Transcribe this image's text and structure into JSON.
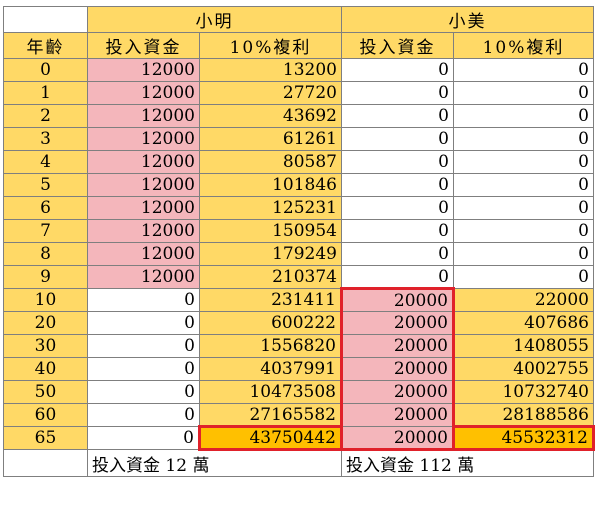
{
  "header": {
    "group_a": "小明",
    "group_b": "小美",
    "col_age": "年齡",
    "col_invest_a": "投入資金",
    "col_rate_a": "10%複利",
    "col_invest_b": "投入資金",
    "col_rate_b": "10%複利"
  },
  "rows": [
    {
      "age": "0",
      "a_invest": "12000",
      "a_value": "13200",
      "b_invest": "0",
      "b_value": "0"
    },
    {
      "age": "1",
      "a_invest": "12000",
      "a_value": "27720",
      "b_invest": "0",
      "b_value": "0"
    },
    {
      "age": "2",
      "a_invest": "12000",
      "a_value": "43692",
      "b_invest": "0",
      "b_value": "0"
    },
    {
      "age": "3",
      "a_invest": "12000",
      "a_value": "61261",
      "b_invest": "0",
      "b_value": "0"
    },
    {
      "age": "4",
      "a_invest": "12000",
      "a_value": "80587",
      "b_invest": "0",
      "b_value": "0"
    },
    {
      "age": "5",
      "a_invest": "12000",
      "a_value": "101846",
      "b_invest": "0",
      "b_value": "0"
    },
    {
      "age": "6",
      "a_invest": "12000",
      "a_value": "125231",
      "b_invest": "0",
      "b_value": "0"
    },
    {
      "age": "7",
      "a_invest": "12000",
      "a_value": "150954",
      "b_invest": "0",
      "b_value": "0"
    },
    {
      "age": "8",
      "a_invest": "12000",
      "a_value": "179249",
      "b_invest": "0",
      "b_value": "0"
    },
    {
      "age": "9",
      "a_invest": "12000",
      "a_value": "210374",
      "b_invest": "0",
      "b_value": "0"
    },
    {
      "age": "10",
      "a_invest": "0",
      "a_value": "231411",
      "b_invest": "20000",
      "b_value": "22000"
    },
    {
      "age": "20",
      "a_invest": "0",
      "a_value": "600222",
      "b_invest": "20000",
      "b_value": "407686"
    },
    {
      "age": "30",
      "a_invest": "0",
      "a_value": "1556820",
      "b_invest": "20000",
      "b_value": "1408055"
    },
    {
      "age": "40",
      "a_invest": "0",
      "a_value": "4037991",
      "b_invest": "20000",
      "b_value": "4002755"
    },
    {
      "age": "50",
      "a_invest": "0",
      "a_value": "10473508",
      "b_invest": "20000",
      "b_value": "10732740"
    },
    {
      "age": "60",
      "a_invest": "0",
      "a_value": "27165582",
      "b_invest": "20000",
      "b_value": "28188586"
    },
    {
      "age": "65",
      "a_invest": "0",
      "a_value": "43750442",
      "b_invest": "20000",
      "b_value": "45532312"
    }
  ],
  "footer": {
    "a_total": "投入資金 12 萬",
    "b_total": "投入資金 112 萬"
  },
  "colors": {
    "header_yellow": "#ffd966",
    "invest_pink": "#f4b6bb",
    "highlight_gold": "#ffc000",
    "outline_red": "#e0212a"
  }
}
